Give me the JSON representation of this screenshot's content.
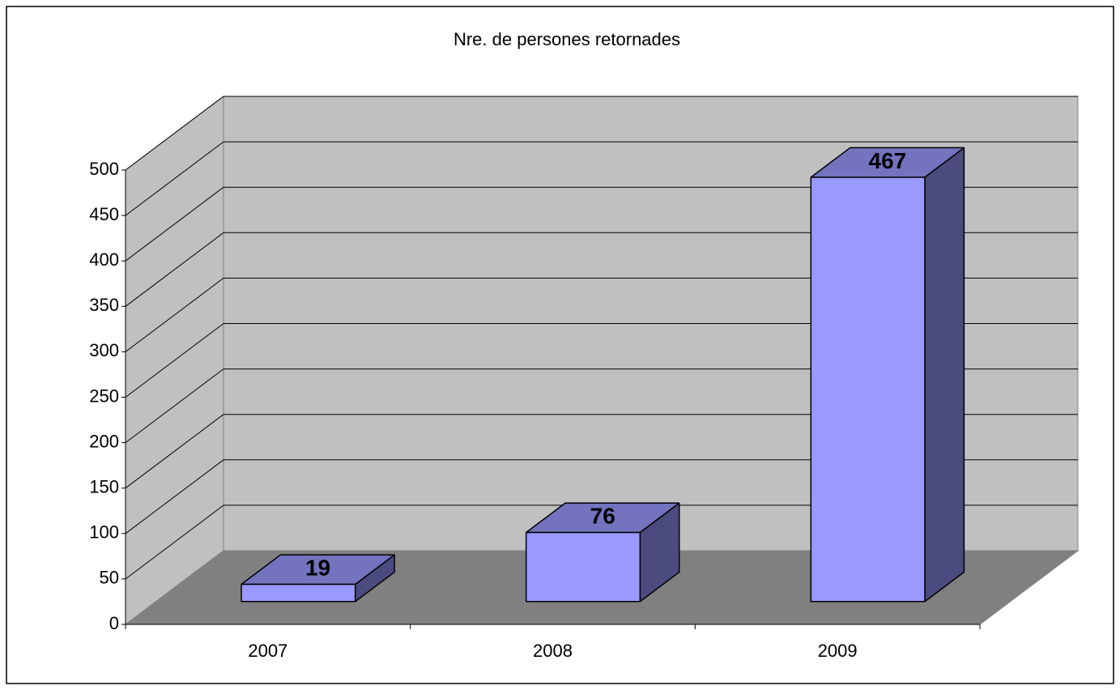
{
  "chart_data": {
    "type": "bar3d",
    "title": "Nre. de persones retornades",
    "categories": [
      "2007",
      "2008",
      "2009"
    ],
    "values": [
      19,
      76,
      467
    ],
    "color": "#9999ff",
    "top_color": "#7373c0",
    "side_color": "#4b4b80",
    "wall_color": "#c0c0c0",
    "floor_color": "#808080",
    "ylim": [
      0,
      500
    ],
    "yticks": [
      0,
      50,
      100,
      150,
      200,
      250,
      300,
      350,
      400,
      450,
      500
    ],
    "grid": true
  }
}
